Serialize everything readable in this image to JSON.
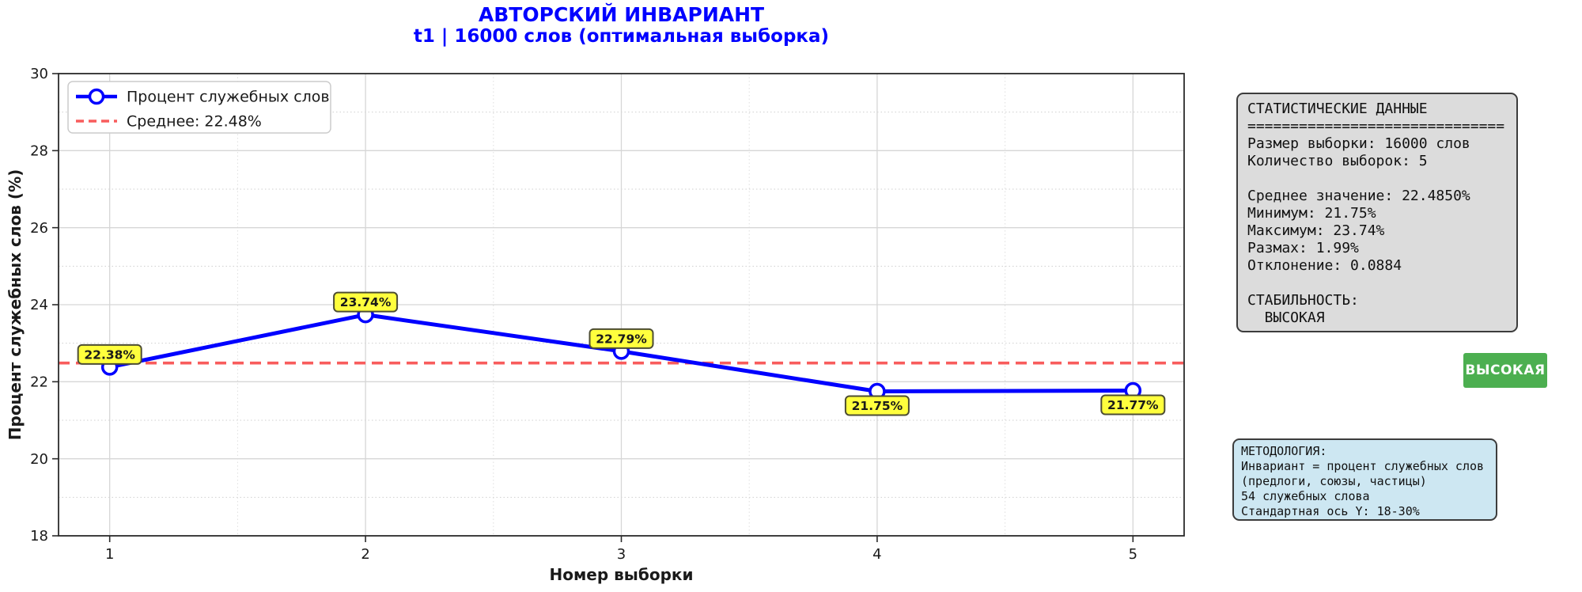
{
  "header": {
    "title": "АВТОРСКИЙ ИНВАРИАНТ",
    "subtitle": "t1 | 16000 слов (оптимальная выборка)",
    "color": "#0000ff"
  },
  "chart_data": {
    "type": "line",
    "title": "АВТОРСКИЙ ИНВАРИАНТ",
    "subtitle": "t1 | 16000 слов (оптимальная выборка)",
    "xlabel": "Номер выборки",
    "ylabel": "Процент служебных слов (%)",
    "x": [
      1,
      2,
      3,
      4,
      5
    ],
    "series": [
      {
        "name": "Процент служебных слов",
        "values": [
          22.38,
          23.74,
          22.79,
          21.75,
          21.77
        ],
        "color": "#0000ff",
        "marker": "circle-open"
      }
    ],
    "point_labels": {
      "texts": [
        "22.38%",
        "23.74%",
        "22.79%",
        "21.75%",
        "21.77%"
      ],
      "placement": [
        "above",
        "above",
        "above",
        "below",
        "below"
      ],
      "bg": "#ffff3d",
      "border": "#4d4d33"
    },
    "mean_line": {
      "value": 22.485,
      "legend_label": "Среднее: 22.48%",
      "color": "#f85c5c",
      "style": "dashed"
    },
    "legend": {
      "position": "upper-left",
      "entries": [
        "Процент служебных слов",
        "Среднее: 22.48%"
      ]
    },
    "xlim": [
      0.8,
      5.2
    ],
    "ylim": [
      18,
      30
    ],
    "xticks": [
      1,
      2,
      3,
      4,
      5
    ],
    "yticks": [
      18,
      20,
      22,
      24,
      26,
      28,
      30
    ],
    "grid": true
  },
  "stats_panel": {
    "bg": "#dcdcdc",
    "lines": [
      "СТАТИСТИЧЕСКИЕ ДАННЫЕ",
      "==============================",
      "Размер выборки: 16000 слов",
      "Количество выборок: 5",
      "",
      "Среднее значение: 22.4850%",
      "Минимум: 21.75%",
      "Максимум: 23.74%",
      "Размах: 1.99%",
      "Отклонение: 0.0884",
      "",
      "СТАБИЛЬНОСТЬ:",
      "  ВЫСОКАЯ"
    ]
  },
  "stability_badge": {
    "label": "ВЫСОКАЯ",
    "bg": "#4caf50",
    "text_color": "#ffffff"
  },
  "methodology_panel": {
    "bg": "#cde7f2",
    "lines": [
      "МЕТОДОЛОГИЯ:",
      "Инвариант = процент служебных слов",
      "(предлоги, союзы, частицы)",
      "54 служебных слова",
      "Стандартная ось Y: 18-30%"
    ]
  }
}
